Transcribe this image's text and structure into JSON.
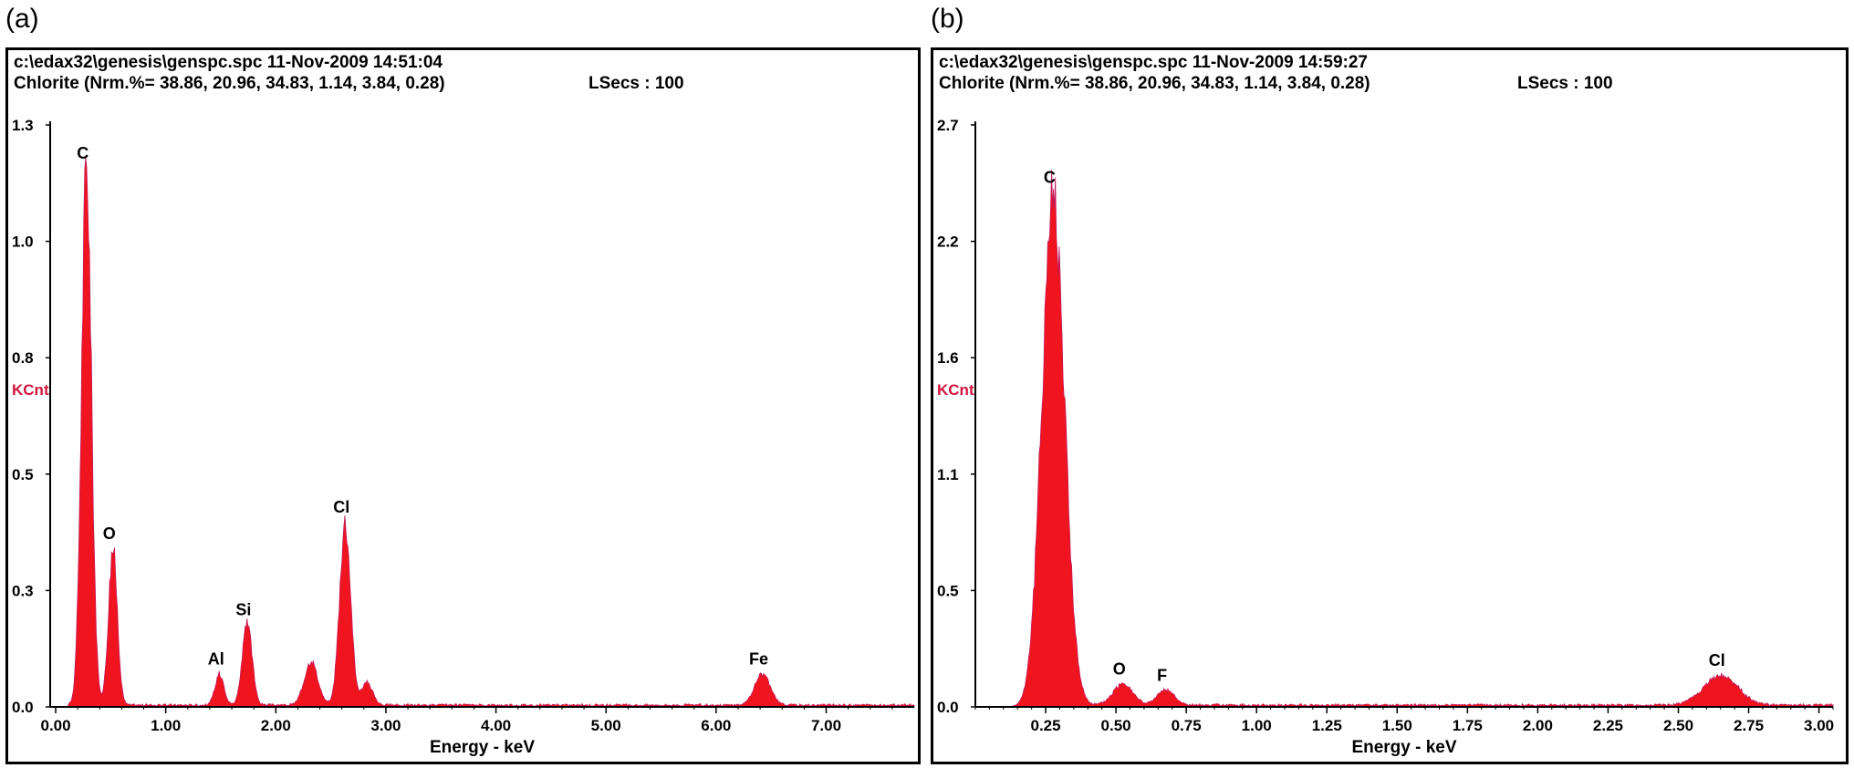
{
  "panels": [
    {
      "letter": "(a)",
      "path": "c:\\edax32\\genesis\\genspc.spc  11-Nov-2009 14:51:04",
      "subtitle": "Chlorite (Nrm.%= 38.86, 20.96, 34.83, 1.14, 3.84, 0.28)",
      "lsecs": "LSecs :  100"
    },
    {
      "letter": "(b)",
      "path": "c:\\edax32\\genesis\\genspc.spc  11-Nov-2009 14:59:27",
      "subtitle": "Chlorite (Nrm.%= 38.86, 20.96, 34.83, 1.14, 3.84, 0.28)",
      "lsecs": "LSecs :  100"
    }
  ],
  "colors": {
    "spectrum": "#f0141e",
    "axis_label": "#d2143c",
    "frame": "#000000"
  },
  "chart_data": [
    {
      "type": "area",
      "xlabel": "Energy - keV",
      "ylabel": "KCnt",
      "xlim": [
        -0.05,
        7.8
      ],
      "ylim": [
        0,
        1.3
      ],
      "x_ticks": [
        "0.00",
        "1.00",
        "2.00",
        "3.00",
        "4.00",
        "5.00",
        "6.00",
        "7.00"
      ],
      "x_tick_values": [
        0,
        1,
        2,
        3,
        4,
        5,
        6,
        7
      ],
      "y_ticks": [
        "0.0",
        "0.3",
        "0.5",
        "0.8",
        "1.0",
        "1.3"
      ],
      "y_tick_values": [
        0,
        0.26,
        0.52,
        0.78,
        1.04,
        1.3
      ],
      "grid": false,
      "peaks": [
        {
          "label": "C",
          "x": 0.28,
          "y": 1.2,
          "width": 0.045
        },
        {
          "label": "O",
          "x": 0.52,
          "y": 0.35,
          "width": 0.04
        },
        {
          "label": "Al",
          "x": 1.49,
          "y": 0.07,
          "width": 0.04
        },
        {
          "label": "Si",
          "x": 1.74,
          "y": 0.18,
          "width": 0.045
        },
        {
          "label": "",
          "x": 2.32,
          "y": 0.1,
          "width": 0.06
        },
        {
          "label": "Cl",
          "x": 2.63,
          "y": 0.41,
          "width": 0.05
        },
        {
          "label": "",
          "x": 2.83,
          "y": 0.05,
          "width": 0.05
        },
        {
          "label": "Fe",
          "x": 6.42,
          "y": 0.07,
          "width": 0.07
        }
      ]
    },
    {
      "type": "area",
      "xlabel": "Energy - keV",
      "ylabel": "KCnt",
      "xlim": [
        0.0,
        3.05
      ],
      "ylim": [
        0,
        2.7
      ],
      "x_ticks": [
        "0.25",
        "0.50",
        "0.75",
        "1.00",
        "1.25",
        "1.50",
        "1.75",
        "2.00",
        "2.25",
        "2.50",
        "2.75",
        "3.00"
      ],
      "x_tick_values": [
        0.25,
        0.5,
        0.75,
        1.0,
        1.25,
        1.5,
        1.75,
        2.0,
        2.25,
        2.5,
        2.75,
        3.0
      ],
      "y_ticks": [
        "0.0",
        "0.5",
        "1.1",
        "1.6",
        "2.2",
        "2.7"
      ],
      "y_tick_values": [
        0,
        0.54,
        1.08,
        1.62,
        2.16,
        2.7
      ],
      "grid": false,
      "peaks": [
        {
          "label": "C",
          "x": 0.277,
          "y": 2.38,
          "width": 0.04
        },
        {
          "label": "O",
          "x": 0.525,
          "y": 0.1,
          "width": 0.035
        },
        {
          "label": "F",
          "x": 0.677,
          "y": 0.07,
          "width": 0.03
        },
        {
          "label": "Cl",
          "x": 2.65,
          "y": 0.14,
          "width": 0.06
        }
      ]
    }
  ]
}
